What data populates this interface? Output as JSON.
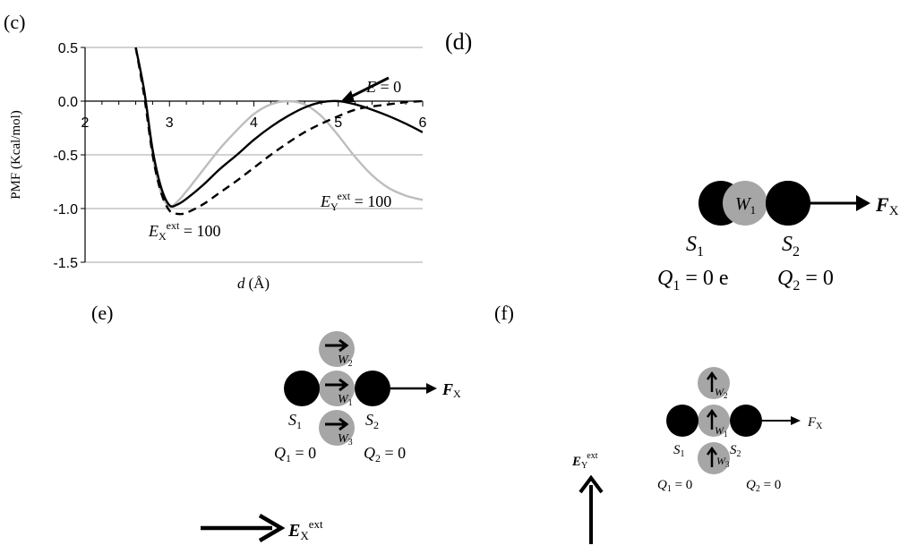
{
  "panels": {
    "c": "(c)",
    "d": "(d)",
    "e": "(e)",
    "f": "(f)"
  },
  "chart_data": {
    "type": "line",
    "xlabel_italic": "d",
    "xlabel_unit": "(Å)",
    "ylabel": "PMF (Kcal/mol)",
    "xlim": [
      2,
      6
    ],
    "ylim": [
      -1.5,
      0.5
    ],
    "xticks": [
      "2",
      "3",
      "4",
      "5",
      "6"
    ],
    "yticks": [
      "0.5",
      "0.0",
      "-0.5",
      "-1.0",
      "-1.5"
    ],
    "grid": "horizontal",
    "series": [
      {
        "name": "E = 0",
        "style": "solid",
        "color": "#000000",
        "x": [
          2.6,
          2.7,
          2.8,
          2.9,
          3.0,
          3.1,
          3.2,
          3.4,
          3.6,
          3.8,
          4.0,
          4.2,
          4.4,
          4.6,
          4.8,
          5.0,
          5.2,
          5.4,
          5.6,
          5.8,
          6.0
        ],
        "y": [
          0.5,
          0.1,
          -0.45,
          -0.8,
          -0.97,
          -0.96,
          -0.91,
          -0.78,
          -0.63,
          -0.5,
          -0.36,
          -0.24,
          -0.14,
          -0.06,
          -0.01,
          0.0,
          -0.03,
          -0.08,
          -0.14,
          -0.21,
          -0.29
        ]
      },
      {
        "name": "EX ext = 100",
        "style": "dashed",
        "color": "#000000",
        "x": [
          2.6,
          2.7,
          2.8,
          2.9,
          3.0,
          3.1,
          3.2,
          3.4,
          3.6,
          3.8,
          4.0,
          4.2,
          4.4,
          4.6,
          4.8,
          5.0,
          5.2,
          5.4,
          5.6,
          5.8,
          6.0
        ],
        "y": [
          0.5,
          0.05,
          -0.5,
          -0.85,
          -1.02,
          -1.05,
          -1.04,
          -0.96,
          -0.85,
          -0.74,
          -0.62,
          -0.5,
          -0.39,
          -0.29,
          -0.21,
          -0.14,
          -0.08,
          -0.05,
          -0.03,
          -0.01,
          0.0
        ]
      },
      {
        "name": "EY ext = 100",
        "style": "solid",
        "color": "#bdbdbd",
        "x": [
          2.6,
          2.7,
          2.8,
          2.9,
          3.0,
          3.1,
          3.2,
          3.4,
          3.6,
          3.8,
          4.0,
          4.2,
          4.4,
          4.6,
          4.8,
          5.0,
          5.2,
          5.4,
          5.6,
          5.8,
          6.0
        ],
        "y": [
          0.5,
          0.1,
          -0.5,
          -0.85,
          -0.98,
          -0.93,
          -0.84,
          -0.64,
          -0.44,
          -0.27,
          -0.12,
          -0.03,
          0.0,
          -0.03,
          -0.14,
          -0.32,
          -0.52,
          -0.69,
          -0.81,
          -0.88,
          -0.92
        ]
      }
    ],
    "annotations": {
      "e0_italic": "E",
      "e0_value": " = 0",
      "ex_E": "E",
      "ex_sub": "X",
      "ex_sup": "ext",
      "ex_value": " = 100",
      "ey_E": "E",
      "ey_sub": "Y",
      "ey_sup": "ext",
      "ey_value": " = 100"
    }
  },
  "diagram_d": {
    "w": "W",
    "w_sub": "1",
    "s1": "S",
    "s1_sub": "1",
    "s2": "S",
    "s2_sub": "2",
    "f": "F",
    "f_sub": "X",
    "q1": "Q",
    "q1_sub": "1",
    "q1_value": " = 0 e",
    "q2": "Q",
    "q2_sub": "2",
    "q2_value": " = 0"
  },
  "diagram_e": {
    "w": "W",
    "w1_sub": "1",
    "w2_sub": "2",
    "w3_sub": "3",
    "s": "S",
    "s1_sub": "1",
    "s2_sub": "2",
    "f": "F",
    "f_sub": "X",
    "q": "Q",
    "q1_sub": "1",
    "q2_sub": "2",
    "q_value": " = 0",
    "field_E": "E",
    "field_sub": "X",
    "field_sup": "ext"
  },
  "diagram_f": {
    "w": "W",
    "w1_sub": "1",
    "w2_sub": "2",
    "w3_sub": "3",
    "s": "S",
    "s1_sub": "1",
    "s2_sub": "2",
    "f": "F",
    "f_sub": "X",
    "q": "Q",
    "q1_sub": "1",
    "q2_sub": "2",
    "q_value": " = 0",
    "field_E": "E",
    "field_sub": "Y",
    "field_sup": "ext"
  }
}
